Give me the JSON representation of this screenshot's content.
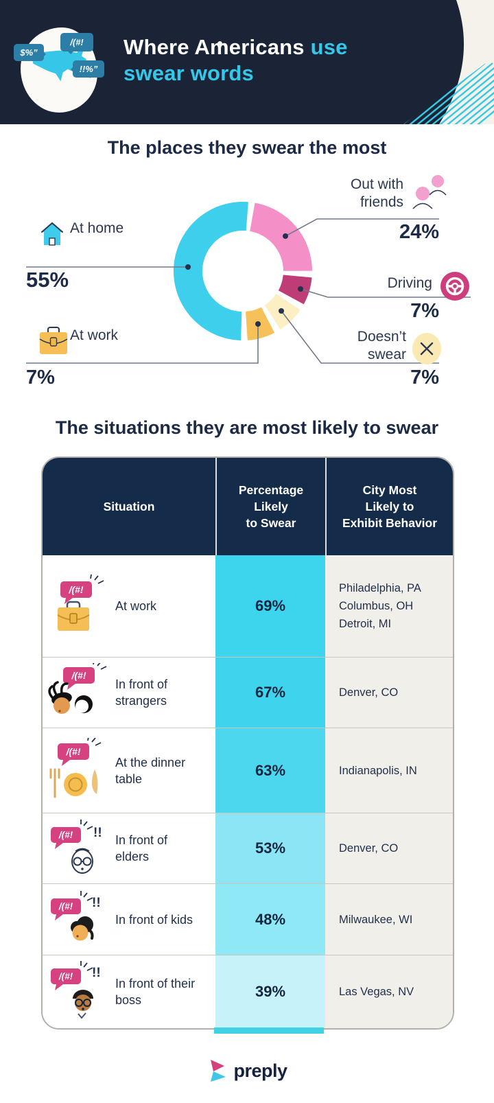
{
  "header": {
    "title_white": "Where Americans",
    "title_accent": "use",
    "title_line2": "swear words",
    "logo_bubbles": {
      "left": "$%”",
      "top": "/(#!",
      "right": "!!%”"
    }
  },
  "places": {
    "title": "The places they swear the most",
    "items": [
      {
        "label": "At home",
        "value": "55%"
      },
      {
        "label": "Out with friends",
        "value": "24%"
      },
      {
        "label": "Driving",
        "value": "7%"
      },
      {
        "label": "Doesn’t swear",
        "value": "7%"
      },
      {
        "label": "At work",
        "value": "7%"
      }
    ]
  },
  "chart_data": {
    "type": "pie",
    "subtype": "donut",
    "title": "The places they swear the most",
    "categories": [
      "At home",
      "Out with friends",
      "Driving",
      "Doesn't swear",
      "At work"
    ],
    "values": [
      55,
      24,
      7,
      7,
      7
    ],
    "unit": "%",
    "start_angle_deg": 10,
    "gap_deg": 5.5,
    "slices": [
      {
        "label": "Out with friends",
        "value": 24,
        "color": "#f48fc7"
      },
      {
        "label": "Driving",
        "value": 7,
        "color": "#bf3d77"
      },
      {
        "label": "Doesn't swear",
        "value": 7,
        "color": "#fcefc4"
      },
      {
        "label": "At work",
        "value": 7,
        "color": "#f7c159"
      },
      {
        "label": "At home",
        "value": 55,
        "color": "#3ecfec"
      }
    ]
  },
  "situations": {
    "title": "The situations they are most likely to swear",
    "columns": [
      [
        "Situation"
      ],
      [
        "Percentage",
        "Likely",
        "to Swear"
      ],
      [
        "City Most",
        "Likely to",
        "Exhibit Behavior"
      ]
    ],
    "bubble_text": "/(#!",
    "exclaim": "!!",
    "rows": [
      {
        "situation": "At work",
        "percent": "69%",
        "cities": [
          "Philadelphia, PA",
          "Columbus, OH",
          "Detroit, MI"
        ],
        "cell_color": "#3dd4ee"
      },
      {
        "situation": "In front of strangers",
        "percent": "67%",
        "cities": [
          "Denver, CO"
        ],
        "cell_color": "#3fd4ee"
      },
      {
        "situation": "At the dinner table",
        "percent": "63%",
        "cities": [
          "Indianapolis, IN"
        ],
        "cell_color": "#4cd7ef"
      },
      {
        "situation": "In front of elders",
        "percent": "53%",
        "cities": [
          "Denver, CO"
        ],
        "cell_color": "#8ce5f4"
      },
      {
        "situation": "In front of kids",
        "percent": "48%",
        "cities": [
          "Milwaukee, WI"
        ],
        "cell_color": "#8ee8f5"
      },
      {
        "situation": "In front of their boss",
        "percent": "39%",
        "cities": [
          "Las Vegas, NV"
        ],
        "cell_color": "#c8f2fa"
      }
    ]
  },
  "footer": {
    "brand": "preply"
  }
}
